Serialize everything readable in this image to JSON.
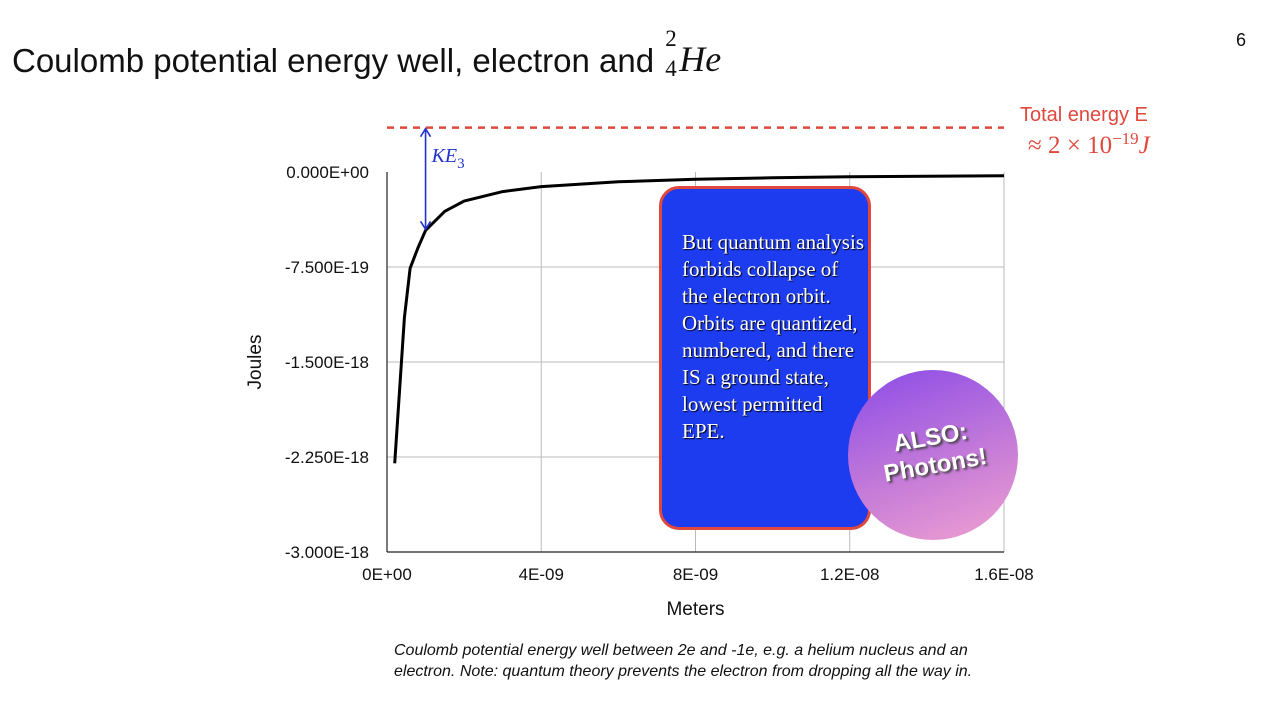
{
  "slide": {
    "title_prefix": "Coulomb potential energy well, electron and ",
    "nucleus": {
      "mass_number": "2",
      "atomic_number": "4",
      "symbol": "He"
    },
    "page_number": "6",
    "caption": "Coulomb potential energy well between 2e and -1e, e.g. a helium nucleus and an electron.  Note: quantum theory prevents the electron from dropping all the way in.",
    "callout_box": "But quantum analysis forbids collapse of the electron orbit. Orbits are quantized, numbered, and there IS a ground state, lowest permitted EPE.",
    "callout_circle": "ALSO: Photons!"
  },
  "chart_data": {
    "type": "line",
    "xlabel": "Meters",
    "ylabel": "Joules",
    "xlim": [
      0,
      1.6e-08
    ],
    "ylim": [
      -3e-18,
      0
    ],
    "x_ticks": [
      0,
      4e-09,
      8e-09,
      1.2e-08,
      1.6e-08
    ],
    "x_tick_labels": [
      "0E+00",
      "4E-09",
      "8E-09",
      "1.2E-08",
      "1.6E-08"
    ],
    "y_ticks": [
      0,
      -7.5e-19,
      -1.5e-18,
      -2.25e-18,
      -3e-18
    ],
    "y_tick_labels": [
      "0.000E+00",
      "-7.500E-19",
      "-1.500E-18",
      "-2.250E-18",
      "-3.000E-18"
    ],
    "grid": true,
    "series": [
      {
        "x": [
          2e-10,
          4.5e-10,
          6e-10,
          8e-10,
          1e-09,
          1.5e-09,
          2e-09,
          3e-09,
          4e-09,
          6e-09,
          8e-09,
          1e-08,
          1.2e-08,
          1.4e-08,
          1.6e-08
        ],
        "y": [
          -2.3e-18,
          -1.15e-18,
          -7.6e-19,
          -6e-19,
          -4.6e-19,
          -3.1e-19,
          -2.3e-19,
          -1.55e-19,
          -1.15e-19,
          -7.7e-20,
          -5.8e-20,
          -4.6e-20,
          -3.8e-20,
          -3.3e-20,
          -2.9e-20
        ],
        "color": "#000000"
      }
    ],
    "total_energy": {
      "label": "Total energy E",
      "approx_value": "≈ 2 × 10",
      "exponent": "−19",
      "unit": "J",
      "y": 3.5e-19,
      "color": "#e0473d"
    },
    "ke_annotation": {
      "label": "KE",
      "subscript": "3",
      "x": 1e-09,
      "y_top": 3.5e-19,
      "y_bottom": -4.6e-19,
      "color": "#2233cc"
    }
  }
}
